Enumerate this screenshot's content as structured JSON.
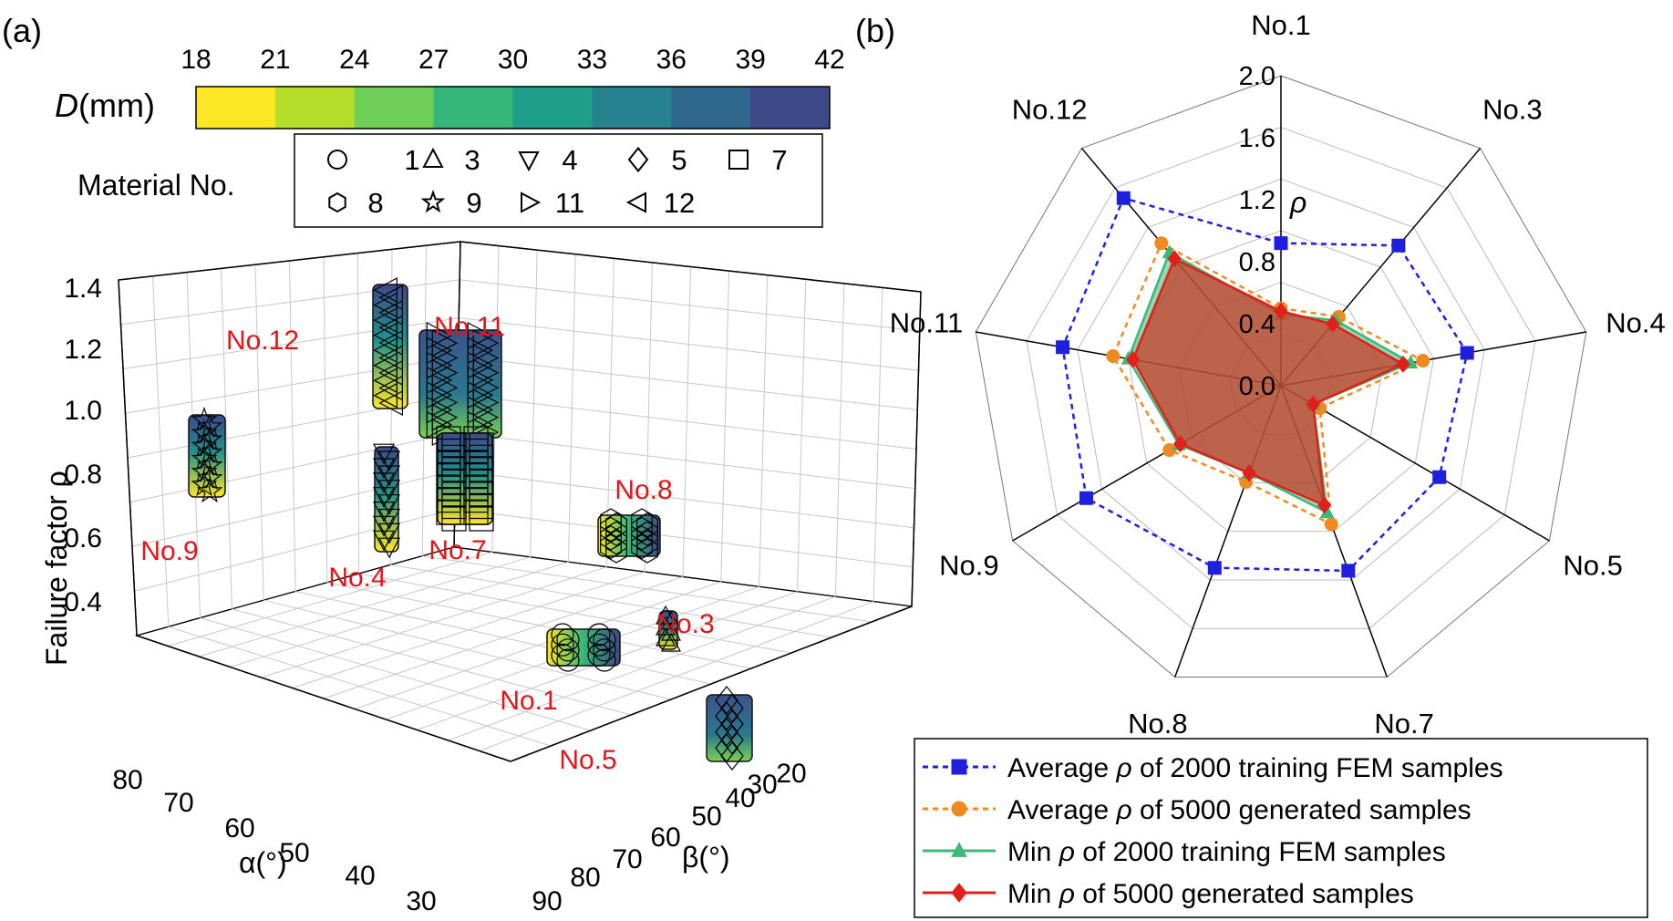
{
  "panels": {
    "a_label": "(a)",
    "b_label": "(b)"
  },
  "colorbar": {
    "label_italic": "D",
    "label_unit": "(mm)",
    "ticks": [
      "18",
      "21",
      "24",
      "27",
      "30",
      "33",
      "36",
      "39",
      "42"
    ],
    "colors": [
      "#fde725",
      "#b5de2b",
      "#6ece58",
      "#35b779",
      "#1f9e89",
      "#26828e",
      "#31688e",
      "#3e4989"
    ]
  },
  "material_legend": {
    "title": "Material No.",
    "entries": [
      {
        "symbol": "circle",
        "label": "1"
      },
      {
        "symbol": "triangle-up",
        "label": "3"
      },
      {
        "symbol": "triangle-down",
        "label": "4"
      },
      {
        "symbol": "diamond",
        "label": "5"
      },
      {
        "symbol": "square",
        "label": "7"
      },
      {
        "symbol": "hexagon",
        "label": "8"
      },
      {
        "symbol": "star",
        "label": "9"
      },
      {
        "symbol": "triangle-right",
        "label": "11"
      },
      {
        "symbol": "triangle-left",
        "label": "12"
      }
    ]
  },
  "chart_data": [
    {
      "type": "scatter3d",
      "zlabel": "Failure factor ρ",
      "xlabel": "α(°)",
      "ylabel": "β(°)",
      "zticks": [
        "0.4",
        "0.6",
        "0.8",
        "1.0",
        "1.2",
        "1.4"
      ],
      "xticks": [
        "80",
        "70",
        "60",
        "50",
        "40",
        "30"
      ],
      "yticks": [
        "90",
        "80",
        "70",
        "60",
        "50",
        "40",
        "30",
        "20"
      ],
      "grid": true,
      "clusters": [
        {
          "label": "No.12",
          "symbol": "triangle-left",
          "rho_min": 1.14,
          "rho_max": 1.48
        },
        {
          "label": "No.11",
          "symbol": "triangle-right",
          "rho_min": 1.0,
          "rho_max": 1.38
        },
        {
          "label": "No.9",
          "symbol": "star",
          "rho_min": 0.92,
          "rho_max": 1.15
        },
        {
          "label": "No.4",
          "symbol": "triangle-down",
          "rho_min": 0.78,
          "rho_max": 1.06
        },
        {
          "label": "No.7",
          "symbol": "square",
          "rho_min": 0.93,
          "rho_max": 1.12
        },
        {
          "label": "No.8",
          "symbol": "hexagon",
          "rho_min": 0.8,
          "rho_max": 0.9
        },
        {
          "label": "No.3",
          "symbol": "triangle-up",
          "rho_min": 0.6,
          "rho_max": 0.68
        },
        {
          "label": "No.1",
          "symbol": "circle",
          "rho_min": 0.52,
          "rho_max": 0.58
        },
        {
          "label": "No.5",
          "symbol": "diamond",
          "rho_min": 0.3,
          "rho_max": 0.42
        }
      ]
    },
    {
      "type": "radar",
      "axis_label": "ρ",
      "r_ticks": [
        "0.0",
        "0.4",
        "0.8",
        "1.2",
        "1.6",
        "2.0"
      ],
      "r_max": 2.0,
      "categories": [
        "No.1",
        "No.3",
        "No.4",
        "No.5",
        "No.7",
        "No.8",
        "No.9",
        "No.11",
        "No.12"
      ],
      "series": [
        {
          "name": "Average ρ of 2000 training FEM samples",
          "color": "#1f1fe0",
          "marker": "square",
          "dash": true,
          "values": [
            0.92,
            1.18,
            1.22,
            1.18,
            1.27,
            1.25,
            1.45,
            1.43,
            1.58
          ]
        },
        {
          "name": "Average ρ of 5000 generated samples",
          "color": "#f08a20",
          "marker": "circle",
          "dash": true,
          "values": [
            0.5,
            0.58,
            0.93,
            0.29,
            0.95,
            0.66,
            0.83,
            1.1,
            1.2
          ]
        },
        {
          "name": "Min ρ of 2000 training FEM samples",
          "color": "#3cb878",
          "marker": "triangle",
          "dash": false,
          "values": [
            0.46,
            0.55,
            0.85,
            0.24,
            0.87,
            0.6,
            0.76,
            1.0,
            1.12
          ]
        },
        {
          "name": "Min ρ of 5000 generated samples",
          "color": "#e0201b",
          "marker": "diamond",
          "dash": false,
          "values": [
            0.48,
            0.52,
            0.8,
            0.24,
            0.82,
            0.6,
            0.75,
            0.97,
            1.07
          ]
        }
      ]
    }
  ]
}
